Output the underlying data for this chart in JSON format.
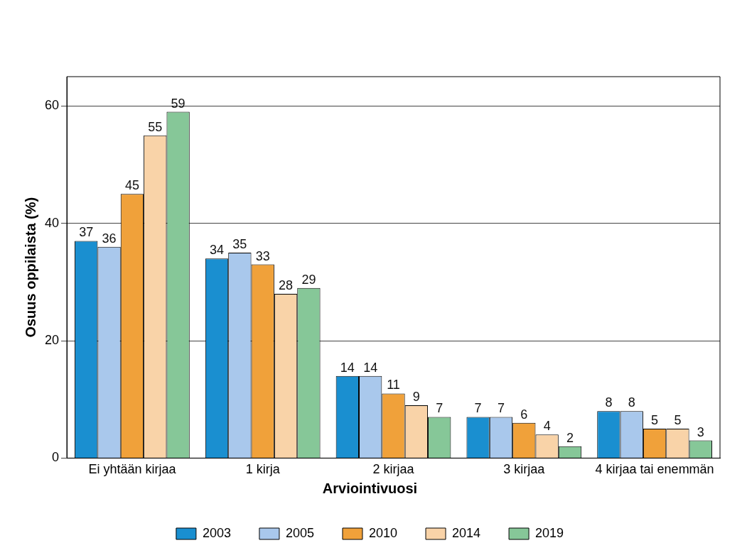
{
  "chart_data": {
    "type": "bar",
    "ylabel": "Osuus oppilaista (%)",
    "legend_title": "Arviointivuosi",
    "categories": [
      "Ei yhtään kirjaa",
      "1 kirja",
      "2 kirjaa",
      "3 kirjaa",
      "4 kirjaa tai enemmän"
    ],
    "series": [
      {
        "name": "2003",
        "color": "#1a8fd0",
        "values": [
          37,
          34,
          14,
          7,
          8
        ]
      },
      {
        "name": "2005",
        "color": "#a9c8ec",
        "values": [
          36,
          35,
          14,
          7,
          8
        ]
      },
      {
        "name": "2010",
        "color": "#f0a13a",
        "values": [
          45,
          33,
          11,
          6,
          5
        ]
      },
      {
        "name": "2014",
        "color": "#f9d3a8",
        "values": [
          55,
          28,
          9,
          4,
          5
        ]
      },
      {
        "name": "2019",
        "color": "#86c798",
        "values": [
          59,
          29,
          7,
          2,
          3
        ]
      }
    ],
    "ylim": [
      0,
      65
    ],
    "yticks": [
      0,
      20,
      40,
      60
    ],
    "grid": "y",
    "legend": "bottom",
    "data_labels": true
  }
}
